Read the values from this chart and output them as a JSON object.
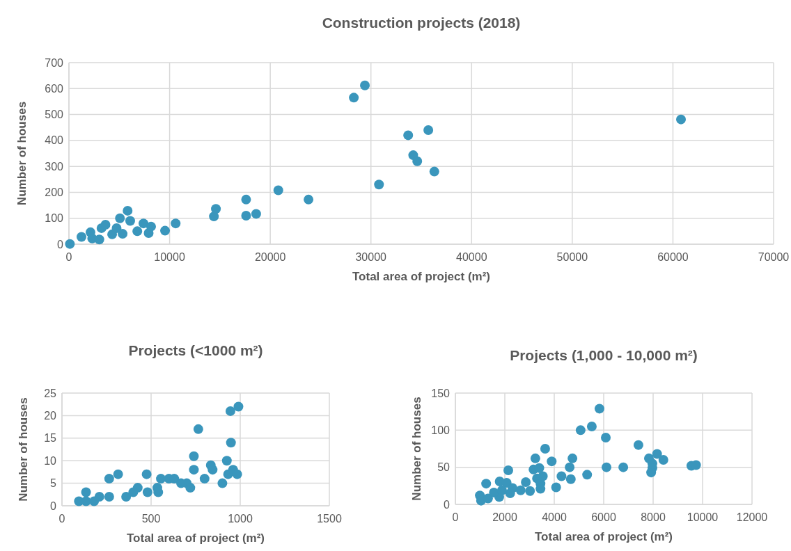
{
  "chart_data": [
    {
      "type": "scatter",
      "title": "Construction projects (2018)",
      "xlabel": "Total area of project (m²)",
      "ylabel": "Number of houses",
      "color": "#3a96bc",
      "marker": "circle",
      "grid": true,
      "xlim": [
        0,
        70000
      ],
      "ylim": [
        0,
        700
      ],
      "xticks": [
        0,
        10000,
        20000,
        30000,
        40000,
        50000,
        60000,
        70000
      ],
      "yticks": [
        0,
        100,
        200,
        300,
        400,
        500,
        600,
        700
      ],
      "x": [
        95,
        1245,
        2311,
        2141,
        3019,
        3236,
        3632,
        4292,
        4736,
        5066,
        5330,
        5830,
        6085,
        6792,
        7406,
        7920,
        8160,
        9547,
        10600,
        14400,
        14600,
        17600,
        17600,
        18600,
        20800,
        23800,
        28300,
        29400,
        30800,
        33700,
        34200,
        34600,
        35700,
        36300,
        60800
      ],
      "values": [
        1,
        28,
        22,
        46,
        18,
        62,
        75,
        38,
        62,
        100,
        40,
        129,
        90,
        50,
        80,
        43,
        68,
        52,
        80,
        107,
        136,
        172,
        110,
        117,
        208,
        172,
        565,
        612,
        230,
        420,
        343,
        320,
        440,
        280,
        481
      ]
    },
    {
      "type": "scatter",
      "title": "Projects (<1000 m²)",
      "xlabel": "Total area of project (m²)",
      "ylabel": "Number of houses",
      "color": "#3a96bc",
      "marker": "circle",
      "grid": true,
      "xlim": [
        0,
        1500
      ],
      "ylim": [
        0,
        25
      ],
      "xticks": [
        0,
        500,
        1000,
        1500
      ],
      "yticks": [
        0,
        5,
        10,
        15,
        20,
        25
      ],
      "x": [
        95,
        135,
        135,
        180,
        210,
        265,
        265,
        315,
        360,
        425,
        400,
        475,
        480,
        535,
        540,
        555,
        600,
        630,
        668,
        700,
        720,
        740,
        740,
        765,
        800,
        835,
        845,
        900,
        925,
        932,
        945,
        948,
        960,
        983,
        990
      ],
      "values": [
        1,
        3,
        1,
        1,
        2,
        2,
        6,
        7,
        2,
        4,
        3,
        7,
        3,
        4,
        3,
        6,
        6,
        6,
        5,
        5,
        4,
        8,
        11,
        17,
        6,
        9,
        8,
        5,
        10,
        7,
        21,
        14,
        8,
        7,
        22
      ]
    },
    {
      "type": "scatter",
      "title": "Projects (1,000 - 10,000 m²)",
      "xlabel": "Total area of project (m²)",
      "ylabel": "Number of houses",
      "color": "#3a96bc",
      "marker": "circle",
      "grid": true,
      "xlim": [
        0,
        12000
      ],
      "ylim": [
        0,
        150
      ],
      "xticks": [
        0,
        2000,
        4000,
        6000,
        8000,
        10000,
        12000
      ],
      "yticks": [
        0,
        50,
        100,
        150
      ],
      "x": [
        5830,
        5066,
        5519,
        6085,
        7406,
        3632,
        3236,
        3896,
        4736,
        7830,
        8160,
        8415,
        7970,
        7970,
        7920,
        6113,
        6792,
        9547,
        9736,
        4623,
        3160,
        3396,
        3538,
        3302,
        3443,
        3443,
        4292,
        4670,
        5330,
        4075,
        2141,
        1245,
        1792,
        2075,
        2311,
        2217,
        2849,
        2642,
        3019,
        1774,
        990,
        1038,
        1320,
        1557,
        1887
      ],
      "values": [
        129,
        100,
        105,
        90,
        80,
        75,
        62,
        58,
        62,
        62,
        68,
        60,
        55,
        49,
        43,
        50,
        50,
        52,
        53,
        50,
        47,
        49,
        38,
        35,
        28,
        21,
        38,
        34,
        40,
        23,
        46,
        28,
        31,
        29,
        22,
        15,
        30,
        19,
        18,
        10,
        12,
        5,
        8,
        16,
        19
      ]
    }
  ]
}
